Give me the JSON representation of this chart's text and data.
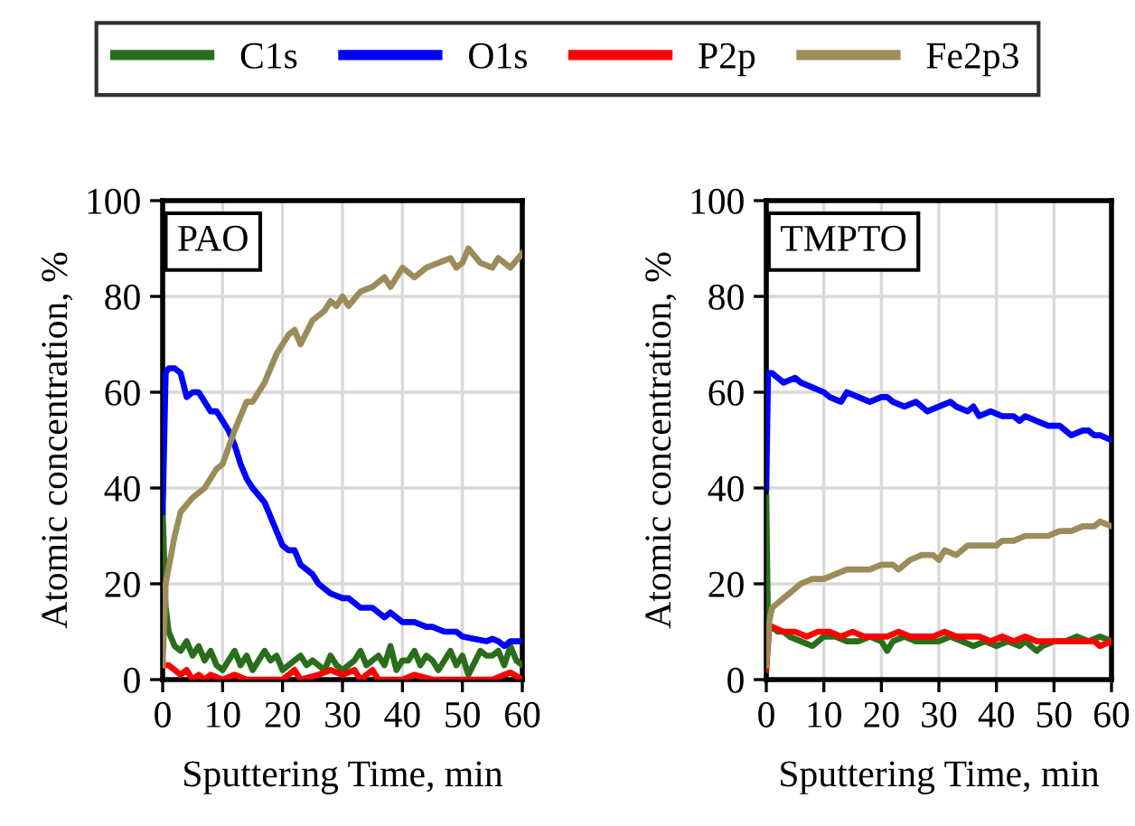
{
  "chart_data": [
    {
      "type": "line",
      "xlabel": "Sputtering Time, min",
      "ylabel": "Atomic concentration, %",
      "annotations": [
        "PAO"
      ],
      "xlim": [
        0,
        60
      ],
      "ylim": [
        0,
        100
      ],
      "xticks": [
        0,
        10,
        20,
        30,
        40,
        50,
        60
      ],
      "yticks": [
        0,
        20,
        40,
        60,
        80,
        100
      ],
      "grid": true,
      "legend": "top",
      "series": [
        {
          "name": "C1s",
          "color": "#2a6e1c",
          "x": [
            0,
            0.5,
            1,
            2,
            3,
            4,
            5,
            6,
            7,
            8,
            9,
            10,
            11,
            12,
            13,
            14,
            15,
            17,
            18,
            19,
            20,
            21,
            23,
            24,
            25,
            27,
            28,
            29,
            30,
            32,
            33,
            34,
            36,
            37,
            38,
            39,
            40,
            41,
            42,
            43,
            44,
            45,
            46,
            48,
            49,
            50,
            51,
            53,
            54,
            55,
            56,
            57,
            58,
            59,
            60
          ],
          "values": [
            35,
            15,
            10,
            7,
            6,
            8,
            5,
            7,
            4,
            6,
            3,
            2,
            4,
            6,
            3,
            5,
            2,
            6,
            4,
            5,
            2,
            3,
            5,
            3,
            4,
            2,
            5,
            3,
            2,
            4,
            6,
            3,
            5,
            3,
            7,
            2,
            4,
            4,
            6,
            3,
            5,
            4,
            2,
            6,
            3,
            5,
            1,
            6,
            5,
            5,
            6,
            3,
            7,
            4,
            3
          ]
        },
        {
          "name": "O1s",
          "color": "#0000ff",
          "x": [
            0,
            0.5,
            1,
            2,
            3,
            4,
            5,
            6,
            7,
            8,
            9,
            10,
            11,
            12,
            13,
            14,
            15,
            17,
            18,
            19,
            20,
            21,
            22,
            23,
            24,
            25,
            26,
            27,
            28,
            30,
            31,
            33,
            35,
            37,
            38,
            40,
            42,
            44,
            45,
            47,
            49,
            50,
            52,
            54,
            55,
            56,
            57,
            58,
            60
          ],
          "values": [
            35,
            64,
            65,
            65,
            64,
            59,
            60,
            60,
            58,
            56,
            56,
            54,
            52,
            49,
            45,
            42,
            40,
            37,
            34,
            31,
            28,
            27,
            27,
            24,
            23,
            22,
            20,
            19,
            18,
            17,
            17,
            15,
            15,
            13,
            14,
            12,
            12,
            11,
            11,
            10,
            10,
            9,
            8.5,
            8,
            8.5,
            8,
            7,
            8,
            8
          ]
        },
        {
          "name": "P2p",
          "color": "#ff0000",
          "x": [
            0,
            1,
            2,
            3,
            4,
            5,
            6,
            7,
            8,
            10,
            12,
            14,
            20,
            22,
            23,
            26,
            28,
            30,
            32,
            33,
            35,
            36,
            40,
            42,
            45,
            50,
            55,
            57,
            58,
            60
          ],
          "values": [
            3,
            3,
            2,
            1,
            2,
            0,
            1,
            0,
            1,
            0,
            1,
            0,
            0,
            2,
            0,
            1,
            2,
            1,
            2,
            0,
            2,
            0,
            0,
            1,
            0,
            0,
            0,
            1,
            1.5,
            0
          ]
        },
        {
          "name": "Fe2p3",
          "color": "#9b8c5a",
          "x": [
            0,
            0.5,
            2,
            3,
            5,
            7,
            9,
            10,
            12,
            14,
            15,
            17,
            19,
            21,
            22,
            23,
            25,
            27,
            28,
            29,
            30,
            31,
            33,
            35,
            37,
            38,
            40,
            42,
            44,
            46,
            48,
            49,
            50,
            51,
            53,
            55,
            56,
            58,
            60
          ],
          "values": [
            3,
            20,
            30,
            35,
            38,
            40,
            44,
            45,
            52,
            58,
            58,
            62,
            68,
            72,
            73,
            70,
            75,
            77,
            79,
            78,
            80,
            78,
            81,
            82,
            84,
            82,
            86,
            84,
            86,
            87,
            88,
            86,
            87,
            90,
            87,
            86,
            88,
            86,
            89
          ]
        }
      ]
    },
    {
      "type": "line",
      "xlabel": "Sputtering Time, min",
      "ylabel": "Atomic concentration, %",
      "annotations": [
        "TMPTO"
      ],
      "xlim": [
        0,
        60
      ],
      "ylim": [
        0,
        100
      ],
      "xticks": [
        0,
        10,
        20,
        30,
        40,
        50,
        60
      ],
      "yticks": [
        0,
        20,
        40,
        60,
        80,
        100
      ],
      "grid": true,
      "series": [
        {
          "name": "C1s",
          "color": "#2a6e1c",
          "x": [
            0,
            0.3,
            1,
            2,
            3,
            4,
            6,
            8,
            9,
            10,
            12,
            14,
            16,
            18,
            20,
            21,
            22,
            24,
            26,
            28,
            30,
            32,
            34,
            36,
            38,
            40,
            42,
            44,
            45,
            47,
            48,
            50,
            52,
            54,
            56,
            58,
            60
          ],
          "values": [
            38,
            10,
            11,
            10,
            10,
            9,
            8,
            7,
            8,
            9,
            9,
            8,
            8,
            9,
            8,
            6,
            8,
            9,
            8,
            8,
            8,
            9,
            8,
            7,
            8,
            7,
            8,
            7,
            8,
            6,
            7,
            8,
            8,
            9,
            8,
            9,
            8
          ]
        },
        {
          "name": "O1s",
          "color": "#0000ff",
          "x": [
            0,
            0.3,
            1,
            3,
            5,
            6,
            8,
            10,
            11,
            13,
            14,
            16,
            18,
            20,
            21,
            22,
            24,
            26,
            27,
            28,
            30,
            32,
            33,
            35,
            36,
            37,
            39,
            41,
            43,
            44,
            45,
            47,
            49,
            51,
            52,
            53,
            55,
            56,
            57,
            58,
            60
          ],
          "values": [
            40,
            64,
            64,
            62,
            63,
            62,
            61,
            60,
            59,
            58,
            60,
            59,
            58,
            59,
            59,
            58,
            57,
            58,
            57,
            56,
            57,
            58,
            57,
            56,
            57,
            55,
            56,
            55,
            55,
            54,
            55,
            54,
            53,
            53,
            52,
            51,
            52,
            52,
            51,
            51,
            50
          ]
        },
        {
          "name": "P2p",
          "color": "#ff0000",
          "x": [
            0,
            0.5,
            1,
            3,
            5,
            7,
            9,
            11,
            13,
            15,
            17,
            19,
            21,
            23,
            25,
            27,
            29,
            31,
            33,
            35,
            37,
            39,
            41,
            43,
            45,
            47,
            49,
            51,
            53,
            55,
            57,
            58,
            60
          ],
          "values": [
            2,
            11,
            11,
            10,
            10,
            9,
            10,
            10,
            9,
            10,
            9,
            9,
            9,
            10,
            9,
            9,
            9,
            10,
            9,
            9,
            9,
            8,
            9,
            8,
            9,
            8,
            8,
            8,
            8,
            8,
            8,
            7,
            8
          ]
        },
        {
          "name": "Fe2p3",
          "color": "#9b8c5a",
          "x": [
            0,
            0.5,
            1,
            2,
            3,
            4,
            6,
            8,
            10,
            12,
            14,
            16,
            18,
            20,
            22,
            23,
            25,
            27,
            29,
            30,
            31,
            33,
            35,
            37,
            39,
            40,
            41,
            43,
            45,
            47,
            49,
            51,
            53,
            55,
            57,
            58,
            60
          ],
          "values": [
            3,
            12,
            15,
            16,
            17,
            18,
            20,
            21,
            21,
            22,
            23,
            23,
            23,
            24,
            24,
            23,
            25,
            26,
            26,
            25,
            27,
            26,
            28,
            28,
            28,
            28,
            29,
            29,
            30,
            30,
            30,
            31,
            31,
            32,
            32,
            33,
            32
          ]
        }
      ]
    }
  ]
}
